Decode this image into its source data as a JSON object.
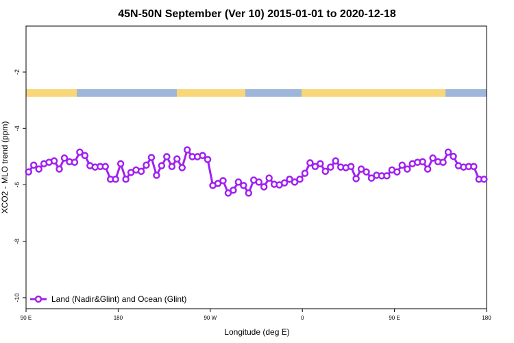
{
  "chart_data": {
    "type": "line",
    "title": "45N-50N September (Ver 10)   2015-01-01 to 2020-12-18",
    "x_label": "Longitude (deg E)",
    "y_label": "XCO2 - MLO trend (ppm)",
    "x": [
      92.5,
      97.5,
      102.5,
      107.5,
      112.5,
      117.5,
      122.5,
      127.5,
      132.5,
      137.5,
      142.5,
      147.5,
      152.5,
      157.5,
      162.5,
      167.5,
      172.5,
      177.5,
      182.5,
      187.5,
      192.5,
      197.5,
      202.5,
      207.5,
      212.5,
      217.5,
      222.5,
      227.5,
      232.5,
      237.5,
      242.5,
      247.5,
      252.5,
      257.5,
      262.5,
      267.5,
      272.5,
      277.5,
      282.5,
      287.5,
      292.5,
      297.5,
      302.5,
      307.5,
      312.5,
      317.5,
      322.5,
      327.5,
      332.5,
      337.5,
      342.5,
      347.5,
      352.5,
      357.5,
      362.5,
      367.5,
      372.5,
      377.5,
      382.5,
      387.5,
      392.5,
      397.5,
      402.5,
      407.5,
      412.5,
      417.5,
      422.5,
      427.5,
      432.5,
      437.5,
      442.5,
      447.5,
      452.5,
      457.5,
      462.5,
      467.5,
      472.5,
      477.5,
      482.5,
      487.5,
      492.5,
      497.5,
      502.5,
      507.5,
      512.5,
      517.5,
      522.5,
      527.5,
      532.5,
      537.5
    ],
    "series": [
      {
        "name": "Land (Nadir&Glint) and Ocean (Glint)",
        "color": "#a020f0",
        "values": [
          -5.54,
          -5.3,
          -5.44,
          -5.25,
          -5.2,
          -5.15,
          -5.44,
          -5.05,
          -5.18,
          -5.2,
          -4.84,
          -4.96,
          -5.32,
          -5.37,
          -5.35,
          -5.35,
          -5.8,
          -5.8,
          -5.25,
          -5.8,
          -5.56,
          -5.47,
          -5.52,
          -5.3,
          -5.03,
          -5.66,
          -5.32,
          -5.0,
          -5.35,
          -5.08,
          -5.39,
          -4.76,
          -5.0,
          -5.0,
          -4.96,
          -5.1,
          -6.02,
          -5.95,
          -5.85,
          -6.29,
          -6.19,
          -5.9,
          -6.02,
          -6.29,
          -5.83,
          -5.9,
          -6.07,
          -5.76,
          -5.98,
          -6.0,
          -5.93,
          -5.8,
          -5.9,
          -5.8,
          -5.59,
          -5.22,
          -5.35,
          -5.25,
          -5.52,
          -5.37,
          -5.15,
          -5.37,
          -5.39,
          -5.35,
          -5.78,
          -5.44,
          -5.54,
          -5.76,
          -5.66,
          -5.68,
          -5.68,
          -5.47,
          -5.54,
          -5.3,
          -5.44,
          -5.25,
          -5.2,
          -5.18,
          -5.44,
          -5.05,
          -5.18,
          -5.2,
          -4.84,
          -4.99,
          -5.32,
          -5.37,
          -5.35,
          -5.35,
          -5.8,
          -5.8
        ]
      }
    ],
    "xlim": [
      90,
      540
    ],
    "xticks": [
      {
        "value": 90,
        "label": "90 E"
      },
      {
        "value": 180,
        "label": "180"
      },
      {
        "value": 270,
        "label": "90 W"
      },
      {
        "value": 360,
        "label": "0"
      },
      {
        "value": 450,
        "label": "90 E"
      },
      {
        "value": 540,
        "label": "180"
      }
    ],
    "ylim": [
      -10.39,
      -0.37
    ],
    "yticks": [
      -2,
      -4,
      -6,
      -8,
      -10
    ],
    "legend": "bottomleft"
  }
}
